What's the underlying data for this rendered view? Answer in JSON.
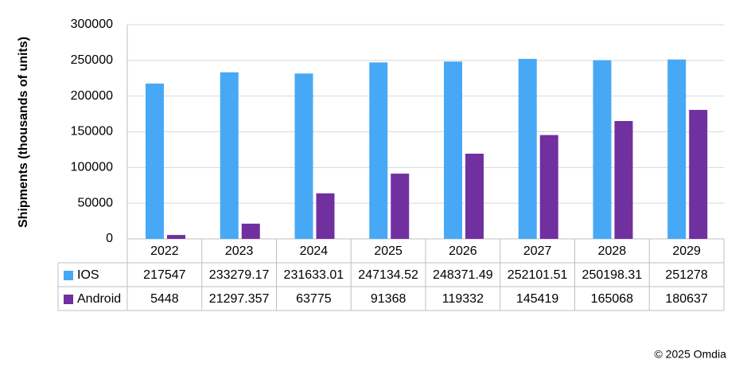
{
  "chart_data": {
    "type": "bar",
    "y_label": "Shipments (thousands of units)",
    "categories": [
      "2022",
      "2023",
      "2024",
      "2025",
      "2026",
      "2027",
      "2028",
      "2029"
    ],
    "series": [
      {
        "name": "IOS",
        "color": "#47a9f5",
        "values": [
          217547,
          233279.17,
          231633.01,
          247134.52,
          248371.49,
          252101.51,
          250198.31,
          251278
        ]
      },
      {
        "name": "Android",
        "color": "#7030a0",
        "values": [
          5448,
          21297.357,
          63775,
          91368,
          119332,
          145419,
          165068,
          180637
        ]
      }
    ],
    "ylim": [
      0,
      300000
    ],
    "yticks": [
      0,
      50000,
      100000,
      150000,
      200000,
      250000,
      300000
    ],
    "grid": true,
    "footer": "© 2025 Omdia"
  }
}
